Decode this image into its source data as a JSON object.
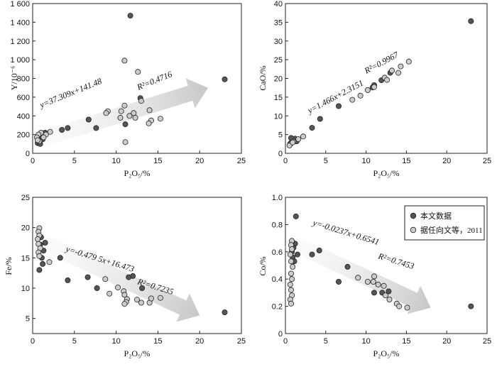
{
  "chart_data": [
    {
      "type": "scatter",
      "xlabel": "P₂O₅/%",
      "ylabel": "Y/10⁻⁶",
      "xlim": [
        0,
        25
      ],
      "ylim": [
        0,
        1600
      ],
      "xticks": [
        0,
        5,
        10,
        15,
        20,
        25
      ],
      "yticks": [
        0,
        200,
        400,
        600,
        800,
        1000,
        1200,
        1400,
        1600
      ],
      "ytick_labels": [
        "0",
        "200",
        "400",
        "600",
        "800",
        "1 000",
        "1 200",
        "1 400",
        "1 600"
      ],
      "equation": "y=37.309x+141.48",
      "r2": "R²=0.4716",
      "trend_arrow": {
        "from": [
          0.3,
          130
        ],
        "to": [
          21,
          700
        ]
      },
      "series": [
        {
          "name": "本文数据",
          "color": "#555555",
          "points": [
            [
              11.7,
              1470
            ],
            [
              23.0,
              790
            ],
            [
              12.9,
              590
            ],
            [
              4.2,
              270
            ],
            [
              3.5,
              250
            ],
            [
              7.6,
              270
            ],
            [
              6.7,
              360
            ],
            [
              11.1,
              310
            ],
            [
              1.5,
              220
            ],
            [
              1.0,
              200
            ],
            [
              0.8,
              180
            ],
            [
              1.2,
              150
            ],
            [
              0.6,
              110
            ],
            [
              0.9,
              100
            ],
            [
              1.1,
              190
            ],
            [
              0.7,
              160
            ]
          ]
        },
        {
          "name": "据任向文等，2011",
          "color": "#cccccc",
          "points": [
            [
              11.0,
              990
            ],
            [
              12.6,
              870
            ],
            [
              13.0,
              560
            ],
            [
              10.6,
              450
            ],
            [
              11.0,
              510
            ],
            [
              9.0,
              450
            ],
            [
              10.5,
              380
            ],
            [
              11.6,
              400
            ],
            [
              8.8,
              430
            ],
            [
              12.1,
              430
            ],
            [
              12.3,
              380
            ],
            [
              14.0,
              460
            ],
            [
              14.2,
              350
            ],
            [
              15.3,
              370
            ],
            [
              13.9,
              320
            ],
            [
              11.1,
              120
            ],
            [
              2.1,
              230
            ],
            [
              1.6,
              200
            ],
            [
              1.0,
              220
            ],
            [
              0.7,
              200
            ],
            [
              0.5,
              170
            ],
            [
              0.8,
              130
            ],
            [
              1.3,
              170
            ],
            [
              0.6,
              140
            ]
          ]
        }
      ]
    },
    {
      "type": "scatter",
      "xlabel": "P₂O₅/%",
      "ylabel": "CaO/%",
      "xlim": [
        0,
        25
      ],
      "ylim": [
        0,
        40
      ],
      "xticks": [
        0,
        5,
        10,
        15,
        20,
        25
      ],
      "yticks": [
        0,
        5,
        10,
        15,
        20,
        25,
        30,
        35,
        40
      ],
      "ytick_labels": [
        "0",
        "5",
        "10",
        "15",
        "20",
        "25",
        "30",
        "35",
        "40"
      ],
      "equation": "y=1.466x+2.3151",
      "r2": "R²=0.9967",
      "trend_arrow": null,
      "series": [
        {
          "name": "本文数据",
          "color": "#555555",
          "points": [
            [
              23.0,
              35.3
            ],
            [
              13.0,
              21.5
            ],
            [
              11.9,
              19.5
            ],
            [
              11.0,
              18.2
            ],
            [
              10.8,
              17.6
            ],
            [
              6.6,
              12.6
            ],
            [
              4.3,
              9.2
            ],
            [
              3.3,
              6.8
            ],
            [
              1.0,
              3.5
            ],
            [
              0.8,
              3.0
            ],
            [
              0.6,
              2.6
            ],
            [
              1.2,
              3.9
            ],
            [
              0.7,
              4.1
            ],
            [
              1.4,
              3.2
            ]
          ]
        },
        {
          "name": "据任向文等，2011",
          "color": "#cccccc",
          "points": [
            [
              15.3,
              24.5
            ],
            [
              14.3,
              23.2
            ],
            [
              14.0,
              21.5
            ],
            [
              13.2,
              22.1
            ],
            [
              12.3,
              20.2
            ],
            [
              12.6,
              19.6
            ],
            [
              11.0,
              17.7
            ],
            [
              10.2,
              16.9
            ],
            [
              9.3,
              15.4
            ],
            [
              8.3,
              14.3
            ],
            [
              2.2,
              4.5
            ],
            [
              1.6,
              3.8
            ],
            [
              1.0,
              3.1
            ],
            [
              0.6,
              2.4
            ],
            [
              0.5,
              2.1
            ],
            [
              0.9,
              2.9
            ]
          ]
        }
      ]
    },
    {
      "type": "scatter",
      "xlabel": "P₂O₅/%",
      "ylabel": "Fe/%",
      "xlim": [
        0,
        25
      ],
      "ylim": [
        2.5,
        25
      ],
      "xticks": [
        0,
        5,
        10,
        15,
        20,
        25
      ],
      "yticks": [
        5,
        10,
        15,
        20,
        25
      ],
      "ytick_labels": [
        "5",
        "10",
        "15",
        "20",
        "25"
      ],
      "equation": "y=-0.479 5x+16.473",
      "r2": "R²=0.7235",
      "trend_arrow": {
        "from": [
          0.5,
          18
        ],
        "to": [
          20,
          5.5
        ]
      },
      "series": [
        {
          "name": "本文数据",
          "color": "#555555",
          "points": [
            [
              23.0,
              6.0
            ],
            [
              12.0,
              12.0
            ],
            [
              11.5,
              11.8
            ],
            [
              13.1,
              10.0
            ],
            [
              6.6,
              11.8
            ],
            [
              4.2,
              11.3
            ],
            [
              7.7,
              10.0
            ],
            [
              3.3,
              15.0
            ],
            [
              1.5,
              17.5
            ],
            [
              1.0,
              18.4
            ],
            [
              0.9,
              17.2
            ],
            [
              1.1,
              15.0
            ],
            [
              1.2,
              14.0
            ],
            [
              0.8,
              13.0
            ],
            [
              1.3,
              16.2
            ]
          ]
        },
        {
          "name": "据任向文等，2011",
          "color": "#cccccc",
          "points": [
            [
              0.8,
              19.9
            ],
            [
              0.7,
              19.3
            ],
            [
              0.8,
              18.7
            ],
            [
              0.6,
              18.1
            ],
            [
              0.7,
              17.3
            ],
            [
              0.9,
              16.6
            ],
            [
              0.7,
              15.9
            ],
            [
              0.8,
              15.3
            ],
            [
              2.0,
              14.3
            ],
            [
              8.7,
              11.5
            ],
            [
              10.2,
              10.1
            ],
            [
              10.9,
              9.5
            ],
            [
              11.0,
              8.9
            ],
            [
              9.2,
              9.1
            ],
            [
              11.3,
              8.2
            ],
            [
              11.2,
              7.7
            ],
            [
              12.5,
              8.1
            ],
            [
              13.0,
              7.6
            ],
            [
              14.0,
              7.6
            ],
            [
              14.2,
              8.3
            ],
            [
              15.3,
              8.4
            ],
            [
              11.0,
              7.4
            ]
          ]
        }
      ]
    },
    {
      "type": "scatter",
      "xlabel": "P₂O₅/%",
      "ylabel": "Co/%",
      "xlim": [
        0,
        25
      ],
      "ylim": [
        0,
        1.0
      ],
      "xticks": [
        0,
        5,
        10,
        15,
        20,
        25
      ],
      "yticks": [
        0,
        0.2,
        0.4,
        0.6,
        0.8,
        1.0
      ],
      "ytick_labels": [
        "0",
        "0.2",
        "0.4",
        "0.6",
        "0.8",
        "1.0"
      ],
      "equation": "y=-0.0237x+0.6541",
      "r2": "R²=0.7453",
      "trend_arrow": {
        "from": [
          0.3,
          0.68
        ],
        "to": [
          18,
          0.19
        ]
      },
      "series": [
        {
          "name": "本文数据",
          "color": "#555555",
          "points": [
            [
              1.3,
              0.86
            ],
            [
              23.0,
              0.2
            ],
            [
              12.8,
              0.31
            ],
            [
              12.0,
              0.3
            ],
            [
              11.0,
              0.3
            ],
            [
              6.6,
              0.38
            ],
            [
              7.7,
              0.49
            ],
            [
              4.2,
              0.61
            ],
            [
              3.3,
              0.58
            ],
            [
              1.5,
              0.58
            ],
            [
              1.2,
              0.66
            ],
            [
              1.0,
              0.63
            ],
            [
              0.9,
              0.56
            ],
            [
              0.8,
              0.6
            ],
            [
              1.1,
              0.53
            ]
          ]
        },
        {
          "name": "据任向文等，2011",
          "color": "#cccccc",
          "points": [
            [
              0.8,
              0.68
            ],
            [
              0.7,
              0.65
            ],
            [
              0.8,
              0.62
            ],
            [
              0.6,
              0.58
            ],
            [
              0.7,
              0.53
            ],
            [
              0.9,
              0.49
            ],
            [
              0.7,
              0.44
            ],
            [
              0.8,
              0.4
            ],
            [
              0.6,
              0.36
            ],
            [
              0.7,
              0.32
            ],
            [
              0.8,
              0.28
            ],
            [
              0.6,
              0.25
            ],
            [
              0.7,
              0.22
            ],
            [
              9.0,
              0.41
            ],
            [
              10.2,
              0.38
            ],
            [
              10.9,
              0.38
            ],
            [
              11.0,
              0.42
            ],
            [
              12.2,
              0.35
            ],
            [
              12.4,
              0.28
            ],
            [
              12.9,
              0.25
            ],
            [
              13.8,
              0.22
            ],
            [
              14.1,
              0.2
            ],
            [
              15.1,
              0.19
            ],
            [
              11.5,
              0.36
            ]
          ]
        }
      ],
      "legend": {
        "placement": "top-right",
        "entries": [
          "本文数据",
          "据任向文等，2011"
        ]
      }
    }
  ]
}
